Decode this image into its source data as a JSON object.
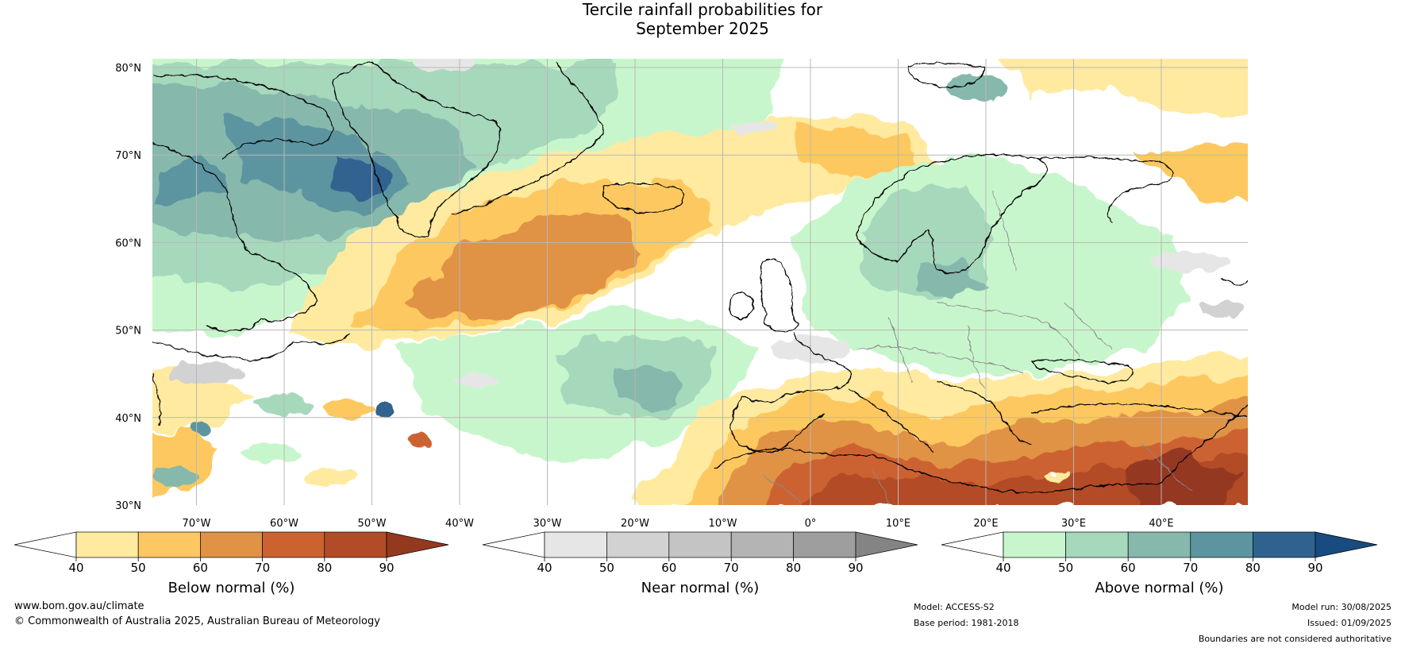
{
  "title": {
    "line1": "Tercile rainfall probabilities for",
    "line2": "September 2025"
  },
  "map": {
    "lat_labels": [
      "80°N",
      "70°N",
      "60°N",
      "50°N",
      "40°N",
      "30°N"
    ],
    "lon_labels": [
      "70°W",
      "60°W",
      "50°W",
      "40°W",
      "30°W",
      "20°W",
      "10°W",
      "0°",
      "10°E",
      "20°E",
      "30°E",
      "40°E"
    ],
    "palettes": {
      "below": [
        "#ffeaa0",
        "#fdc861",
        "#e09245",
        "#cc6230",
        "#b24c28",
        "#943820"
      ],
      "near": [
        "#e6e6e6",
        "#d2d2d2",
        "#c4c4c4",
        "#b4b4b4",
        "#9e9e9e",
        "#848484"
      ],
      "above": [
        "#c8f6cc",
        "#a6d8bc",
        "#86b8ac",
        "#5c95a0",
        "#30628f",
        "#184b80"
      ]
    }
  },
  "colorbars": [
    {
      "name": "below",
      "title": "Below normal (%)",
      "ticks": [
        "40",
        "50",
        "60",
        "70",
        "80",
        "90"
      ],
      "colors": [
        "#ffeaa0",
        "#fdc861",
        "#e09245",
        "#cc6230",
        "#b24c28"
      ],
      "extend_color": "#943820"
    },
    {
      "name": "near",
      "title": "Near normal (%)",
      "ticks": [
        "40",
        "50",
        "60",
        "70",
        "80",
        "90"
      ],
      "colors": [
        "#e6e6e6",
        "#d2d2d2",
        "#c4c4c4",
        "#b4b4b4",
        "#9e9e9e"
      ],
      "extend_color": "#848484"
    },
    {
      "name": "above",
      "title": "Above normal (%)",
      "ticks": [
        "40",
        "50",
        "60",
        "70",
        "80",
        "90"
      ],
      "colors": [
        "#c8f6cc",
        "#a6d8bc",
        "#86b8ac",
        "#5c95a0",
        "#30628f"
      ],
      "extend_color": "#184b80"
    }
  ],
  "footer": {
    "website": "www.bom.gov.au/climate",
    "copyright": "© Commonwealth of Australia 2025, Australian Bureau of Meteorology",
    "model": "Model: ACCESS-S2",
    "base_period": "Base period: 1981-2018",
    "model_run": "Model run: 30/08/2025",
    "issued": "Issued: 01/09/2025",
    "disclaimer": "Boundaries are not considered authoritative"
  }
}
